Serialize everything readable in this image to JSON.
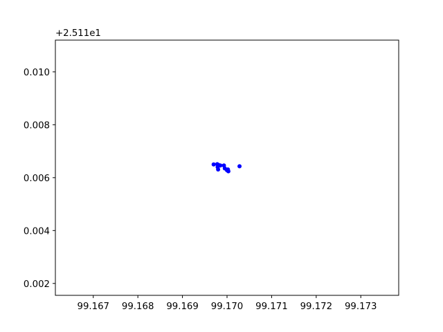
{
  "chart_data": {
    "type": "scatter",
    "title": "",
    "xlabel": "",
    "ylabel": "",
    "y_offset_label": "+2.511e1",
    "xlim": [
      99.16615,
      99.17385
    ],
    "ylim": [
      0.00155,
      0.0112
    ],
    "xticks": [
      99.167,
      99.168,
      99.169,
      99.17,
      99.171,
      99.172,
      99.173
    ],
    "xtick_labels": [
      "99.167",
      "99.168",
      "99.169",
      "99.170",
      "99.171",
      "99.172",
      "99.173"
    ],
    "yticks": [
      0.002,
      0.004,
      0.006,
      0.008,
      0.01
    ],
    "ytick_labels": [
      "0.002",
      "0.004",
      "0.006",
      "0.008",
      "0.010"
    ],
    "grid": false,
    "marker_color": "#0000ff",
    "points": [
      {
        "x": 99.1697,
        "y": 0.0065
      },
      {
        "x": 99.16978,
        "y": 0.00651
      },
      {
        "x": 99.16981,
        "y": 0.00648
      },
      {
        "x": 99.16979,
        "y": 0.0064
      },
      {
        "x": 99.1698,
        "y": 0.00631
      },
      {
        "x": 99.16985,
        "y": 0.00646
      },
      {
        "x": 99.16993,
        "y": 0.00646
      },
      {
        "x": 99.16995,
        "y": 0.00635
      },
      {
        "x": 99.17,
        "y": 0.00628
      },
      {
        "x": 99.17003,
        "y": 0.00624
      },
      {
        "x": 99.17002,
        "y": 0.00631
      },
      {
        "x": 99.17028,
        "y": 0.00643
      }
    ]
  }
}
